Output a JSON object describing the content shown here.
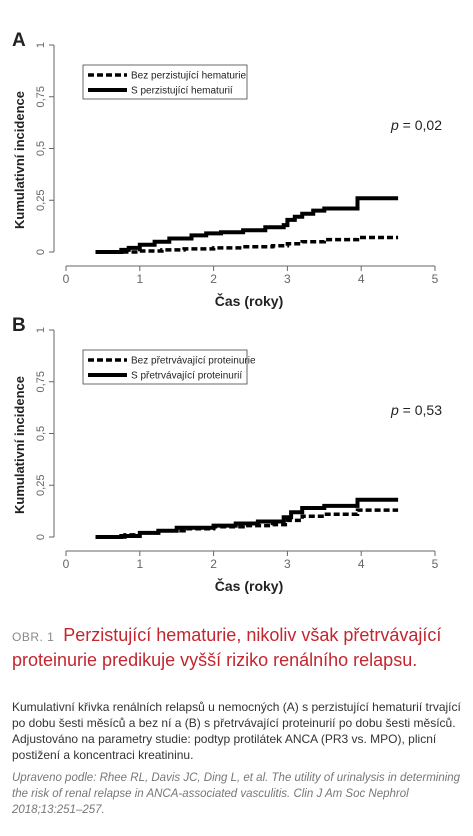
{
  "figure": {
    "label": "OBR. 1",
    "title": "Perzistující hematurie, nikoliv však přetrvávající proteinurie predikuje vyšší riziko renálního relapsu.",
    "description": "Kumulativní křivka renálních relapsů u nemocných (A) s perzistující hematurií trvající po dobu šesti měsíců a bez ní a (B) s přetrvávající proteinurií po dobu šesti měsíců. Adjustováno na parametry studie: podtyp protilátek ANCA (PR3 vs. MPO), plicní postižení a koncentraci kreatininu.",
    "source": "Upraveno podle: Rhee RL, Davis JC, Ding L, et al. The utility of urinalysis in determining the risk of renal relapse in ANCA-associated vasculitis. Clin J Am Soc Nephrol 2018;13:251–257."
  },
  "chart_data": [
    {
      "type": "line",
      "panel": "A",
      "xlabel": "Čas (roky)",
      "ylabel": "Kumulativní incidence",
      "xlim": [
        0,
        5
      ],
      "ylim": [
        0,
        1
      ],
      "xticks": [
        "0",
        "1",
        "2",
        "3",
        "4",
        "5"
      ],
      "yticks": [
        "0",
        "0,25",
        "0,5",
        "0,75",
        "1"
      ],
      "annotation": "p = 0,02",
      "annotation_p": "p",
      "annotation_rest": " = 0,02",
      "legend_position": "top-left",
      "series": [
        {
          "name": "Bez perzistující hematurie",
          "style": "dashed",
          "x": [
            0.4,
            0.75,
            1.0,
            1.3,
            1.6,
            2.0,
            2.4,
            2.8,
            3.0,
            3.2,
            3.5,
            3.95,
            4.5
          ],
          "y": [
            0.0,
            0.0,
            0.005,
            0.01,
            0.015,
            0.02,
            0.025,
            0.03,
            0.04,
            0.05,
            0.06,
            0.07,
            0.07
          ]
        },
        {
          "name": "S perzistující hematurií",
          "style": "solid",
          "x": [
            0.4,
            0.75,
            0.85,
            1.0,
            1.2,
            1.4,
            1.7,
            1.9,
            2.1,
            2.4,
            2.7,
            2.95,
            3.0,
            3.1,
            3.2,
            3.35,
            3.5,
            3.95,
            4.5
          ],
          "y": [
            0.0,
            0.01,
            0.02,
            0.035,
            0.05,
            0.065,
            0.08,
            0.09,
            0.095,
            0.105,
            0.12,
            0.13,
            0.155,
            0.17,
            0.185,
            0.2,
            0.21,
            0.26,
            0.26
          ]
        }
      ]
    },
    {
      "type": "line",
      "panel": "B",
      "xlabel": "Čas (roky)",
      "ylabel": "Kumulativní incidence",
      "xlim": [
        0,
        5
      ],
      "ylim": [
        0,
        1
      ],
      "xticks": [
        "0",
        "1",
        "2",
        "3",
        "4",
        "5"
      ],
      "yticks": [
        "0",
        "0,25",
        "0,5",
        "0,75",
        "1"
      ],
      "annotation": "p = 0,53",
      "annotation_p": "p",
      "annotation_rest": " = 0,53",
      "legend_position": "top-left",
      "series": [
        {
          "name": "Bez přetrvávající proteinurie",
          "style": "dashed",
          "x": [
            0.4,
            0.8,
            1.0,
            1.3,
            1.6,
            2.0,
            2.4,
            2.8,
            3.0,
            3.2,
            3.5,
            3.95,
            4.5
          ],
          "y": [
            0.0,
            0.01,
            0.02,
            0.03,
            0.04,
            0.05,
            0.055,
            0.06,
            0.08,
            0.1,
            0.11,
            0.13,
            0.13
          ]
        },
        {
          "name": "S přetrvávající proteinurií",
          "style": "solid",
          "x": [
            0.4,
            0.75,
            1.0,
            1.25,
            1.5,
            2.0,
            2.3,
            2.6,
            2.95,
            3.05,
            3.2,
            3.5,
            3.95,
            4.5
          ],
          "y": [
            0.0,
            0.005,
            0.02,
            0.03,
            0.045,
            0.055,
            0.065,
            0.075,
            0.095,
            0.12,
            0.14,
            0.15,
            0.18,
            0.18
          ]
        }
      ]
    }
  ]
}
